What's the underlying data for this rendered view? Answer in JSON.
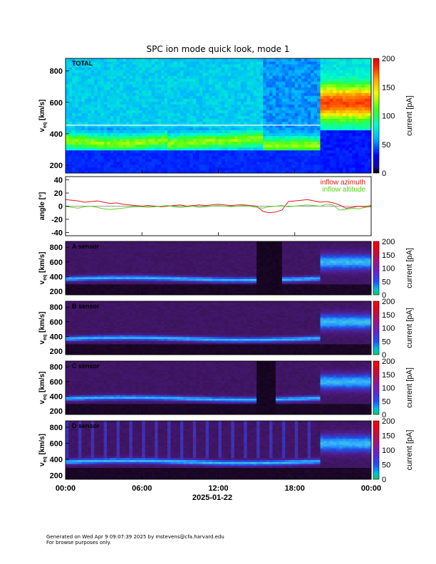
{
  "title": "SPC ion mode quick look, mode 1",
  "footer": {
    "line1": "Generated on Wed Apr  9 09:07:39 2025 by mstevens@cfa.harvard.edu",
    "line2": "For browse purposes only."
  },
  "colors": {
    "azimuth": "#e21a1a",
    "altitude": "#5ad21e",
    "zero_line": "#7a7a7a"
  },
  "chart_data": [
    {
      "type": "heatmap",
      "panel_label": "TOTAL",
      "ylabel": "v",
      "ylabel_sub": "eq",
      "ylabel_unit": "[km/s]",
      "ylim": [
        150,
        880
      ],
      "yticks": [
        200,
        400,
        600,
        800
      ],
      "colorbar": {
        "label": "current [pA]",
        "range": [
          0,
          200
        ],
        "ticks": [
          0,
          50,
          100,
          150,
          200
        ],
        "colormap": "rainbow"
      },
      "segments": [
        {
          "from": "00:00",
          "to": "15:30",
          "core_speed": 360,
          "note": "dense core around 320-420 km/s"
        },
        {
          "from": "15:30",
          "to": "20:00",
          "core_speed": 330,
          "note": "faint core"
        },
        {
          "from": "20:00",
          "to": "24:00",
          "core_speed": 600,
          "note": "fast wind, peak near 600 km/s"
        }
      ]
    },
    {
      "type": "line",
      "ylabel": "angle [°]",
      "ylim": [
        -45,
        45
      ],
      "yticks": [
        -40,
        -20,
        0,
        20,
        40
      ],
      "x": [
        0,
        0.5,
        1,
        1.5,
        2,
        2.5,
        3,
        3.5,
        4,
        4.5,
        5,
        5.5,
        6,
        6.5,
        7,
        7.5,
        8,
        8.5,
        9,
        9.5,
        10,
        10.5,
        11,
        11.5,
        12,
        12.5,
        13,
        13.5,
        14,
        14.5,
        15,
        15.5,
        16,
        16.5,
        17,
        17.5,
        18,
        18.5,
        19,
        19.5,
        20,
        20.5,
        21,
        21.5,
        22,
        22.5,
        23,
        23.5,
        24
      ],
      "series": [
        {
          "name": "inflow azimuth",
          "color_key": "azimuth",
          "values": [
            10,
            9,
            8,
            6,
            7,
            8,
            6,
            4,
            5,
            3,
            2,
            1,
            0,
            1,
            0,
            -1,
            0,
            1,
            2,
            0,
            1,
            2,
            1,
            2,
            3,
            2,
            1,
            2,
            2,
            1,
            0,
            -8,
            -10,
            -9,
            -6,
            7,
            8,
            9,
            10,
            8,
            6,
            7,
            5,
            2,
            -3,
            -2,
            0,
            -1,
            1
          ]
        },
        {
          "name": "inflow altitude",
          "color_key": "altitude",
          "values": [
            0,
            -2,
            -3,
            -1,
            0,
            -2,
            -4,
            -5,
            -4,
            -3,
            -2,
            -1,
            -1,
            -2,
            -1,
            0,
            1,
            -1,
            -2,
            -1,
            0,
            -2,
            -1,
            0,
            1,
            0,
            -1,
            0,
            1,
            0,
            -2,
            -3,
            -1,
            0,
            1,
            -1,
            0,
            1,
            2,
            1,
            0,
            3,
            2,
            -6,
            -5,
            -3,
            -4,
            -2,
            -1
          ]
        }
      ]
    },
    {
      "type": "heatmap",
      "panel_label": "A sensor",
      "ylabel": "v",
      "ylabel_sub": "eq",
      "ylabel_unit": "[km/s]",
      "ylim": [
        150,
        880
      ],
      "yticks": [
        200,
        400,
        600,
        800
      ],
      "colorbar": {
        "label": "current [pA]",
        "range": [
          0,
          200
        ],
        "ticks": [
          0,
          50,
          100,
          150,
          200
        ],
        "colormap": "rainbow"
      }
    },
    {
      "type": "heatmap",
      "panel_label": "B sensor",
      "ylabel": "v",
      "ylabel_sub": "eq",
      "ylabel_unit": "[km/s]",
      "ylim": [
        150,
        880
      ],
      "yticks": [
        200,
        400,
        600,
        800
      ],
      "colorbar": {
        "label": "current [pA]",
        "range": [
          0,
          200
        ],
        "ticks": [
          0,
          50,
          100,
          150,
          200
        ],
        "colormap": "rainbow"
      }
    },
    {
      "type": "heatmap",
      "panel_label": "C sensor",
      "ylabel": "v",
      "ylabel_sub": "eq",
      "ylabel_unit": "[km/s]",
      "ylim": [
        150,
        880
      ],
      "yticks": [
        200,
        400,
        600,
        800
      ],
      "colorbar": {
        "label": "current [pA]",
        "range": [
          0,
          200
        ],
        "ticks": [
          0,
          50,
          100,
          150,
          200
        ],
        "colormap": "rainbow"
      }
    },
    {
      "type": "heatmap",
      "panel_label": "D sensor",
      "ylabel": "v",
      "ylabel_sub": "eq",
      "ylabel_unit": "[km/s]",
      "ylim": [
        150,
        880
      ],
      "yticks": [
        200,
        400,
        600,
        800
      ],
      "colorbar": {
        "label": "current [pA]",
        "range": [
          0,
          200
        ],
        "ticks": [
          0,
          50,
          100,
          150,
          200
        ],
        "colormap": "rainbow"
      }
    }
  ],
  "xaxis": {
    "range_hours": [
      0,
      24
    ],
    "ticks": [
      "00:00",
      "06:00",
      "12:00",
      "18:00",
      "00:00"
    ],
    "date_label": "2025-01-22"
  }
}
